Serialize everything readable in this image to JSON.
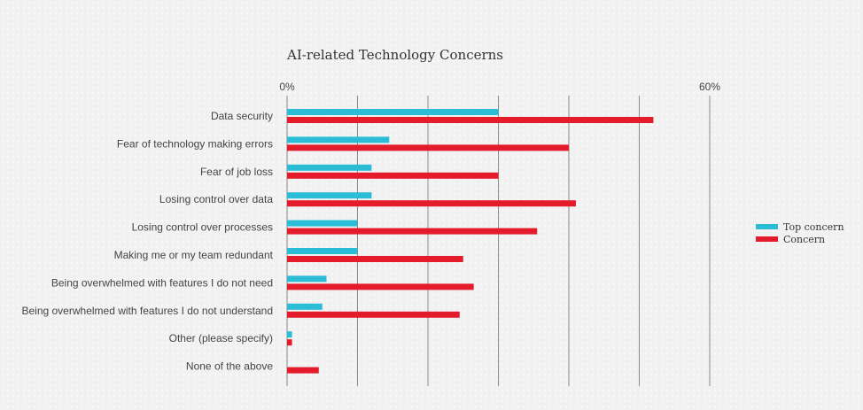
{
  "chart_data": {
    "type": "bar",
    "orientation": "horizontal",
    "title": "AI-related Technology Concerns",
    "categories": [
      "Data security",
      "Fear of technology making errors",
      "Fear of job loss",
      "Losing control over data",
      "Losing control over processes",
      "Making me or my team redundant",
      "Being overwhelmed with features I do not need",
      "Being overwhelmed with features I do not understand",
      "Other (please specify)",
      "None of the above"
    ],
    "series": [
      {
        "name": "Top concern",
        "color": "#2bbcd6",
        "values": [
          30,
          14.5,
          12,
          12,
          10,
          10,
          5.6,
          5,
          0.7,
          0
        ]
      },
      {
        "name": "Concern",
        "color": "#e41b2b",
        "values": [
          52,
          40,
          30,
          41,
          35.5,
          25,
          26.5,
          24.5,
          0.7,
          4.5
        ]
      }
    ],
    "xlim": [
      0,
      60
    ],
    "tick_labels": [
      "0%",
      "60%"
    ],
    "grid": true,
    "legend_position": "right"
  }
}
